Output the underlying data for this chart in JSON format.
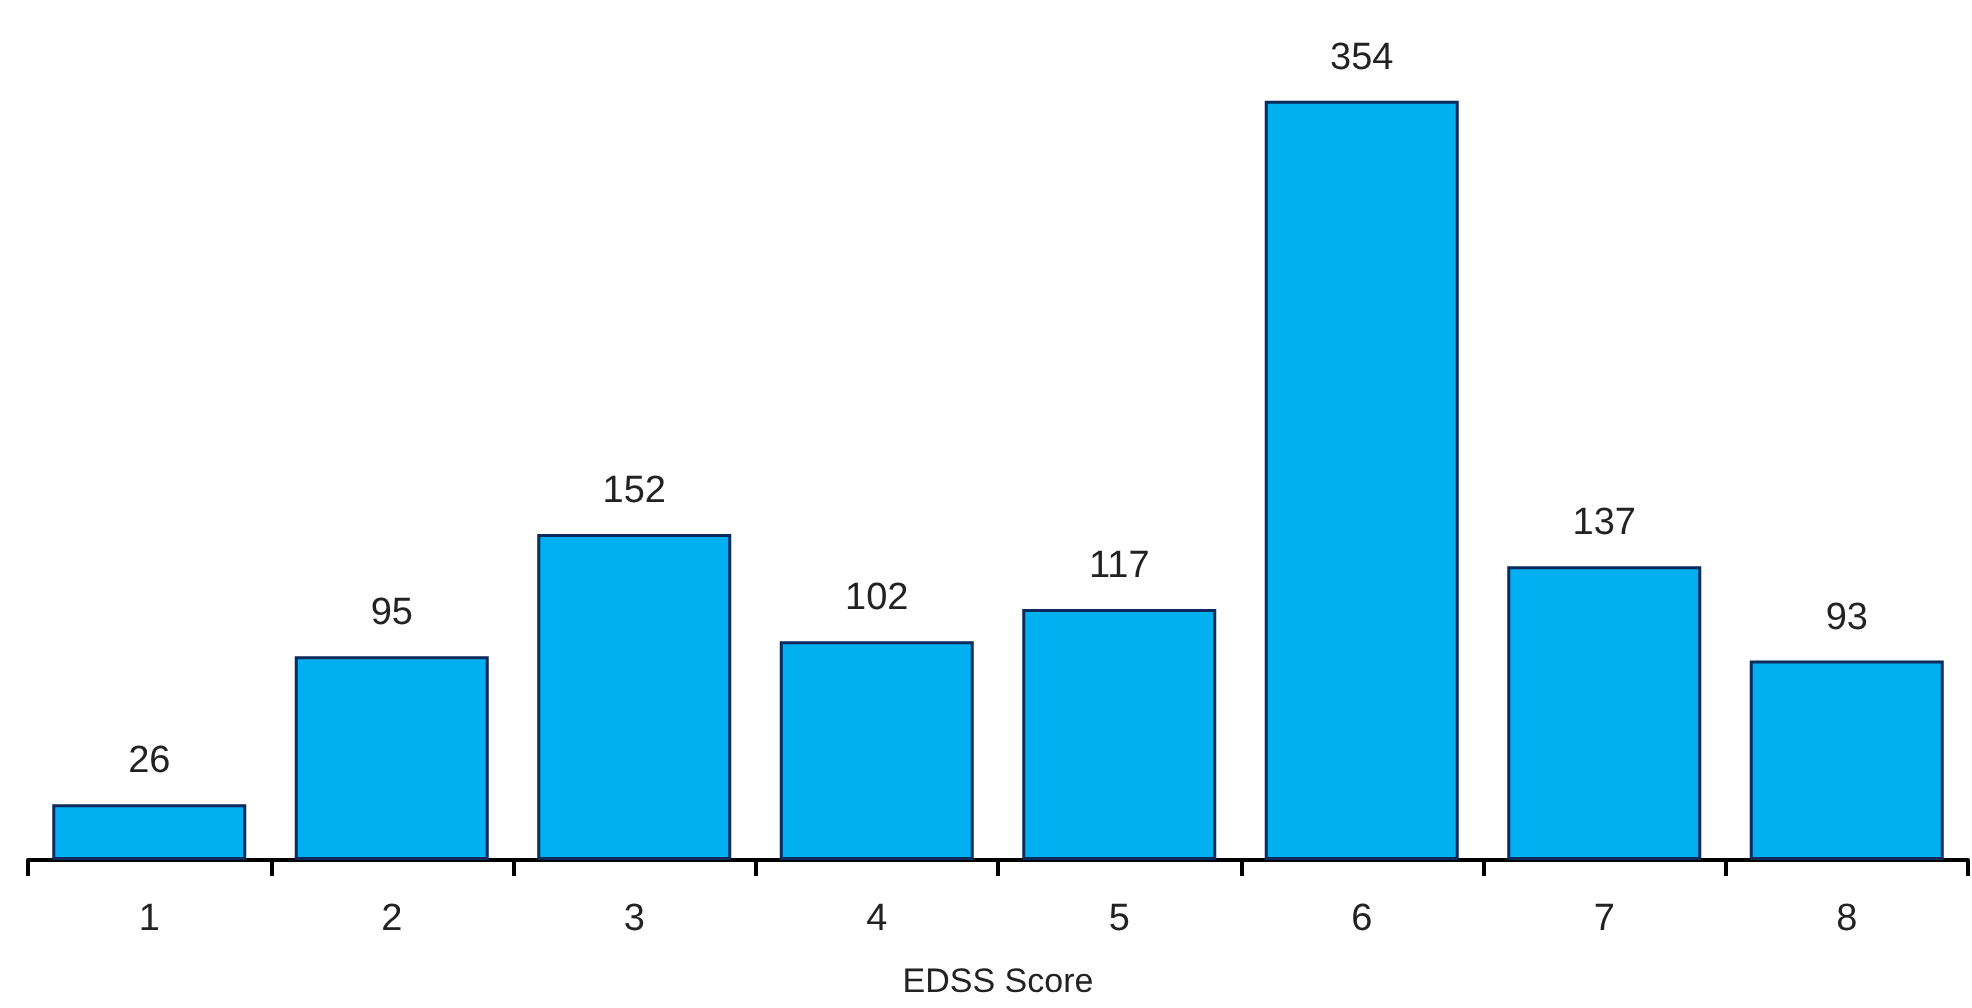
{
  "chart_data": {
    "type": "bar",
    "xlabel": "EDSS Score",
    "categories": [
      "1",
      "2",
      "3",
      "4",
      "5",
      "6",
      "7",
      "8"
    ],
    "values": [
      26,
      95,
      152,
      102,
      117,
      354,
      137,
      93
    ],
    "color": "#00b0f0",
    "data_labels": true,
    "grid": false
  }
}
